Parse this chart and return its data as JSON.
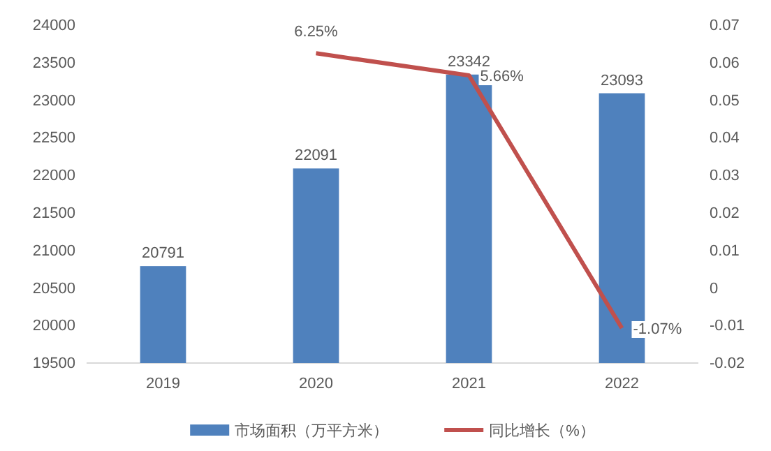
{
  "chart_data": {
    "type": "bar",
    "categories": [
      "2019",
      "2020",
      "2021",
      "2022"
    ],
    "series": [
      {
        "name": "市场面积（万平方米）",
        "color": "#4f81bd",
        "values": [
          20791,
          22091,
          23342,
          23093
        ]
      },
      {
        "name": "同比增长（%）",
        "type": "line",
        "axis": "y2",
        "color": "#c0504d",
        "values": [
          null,
          0.0625,
          0.0566,
          -0.0107
        ],
        "value_labels": [
          null,
          "6.25%",
          "5.66%",
          "-1.07%"
        ]
      }
    ],
    "data_labels": true,
    "ylim": [
      19500,
      24000
    ],
    "yticks": [
      19500,
      20000,
      20500,
      21000,
      21500,
      22000,
      22500,
      23000,
      23500,
      24000
    ],
    "y2lim": [
      -0.02,
      0.07
    ],
    "y2ticks": [
      -0.02,
      -0.01,
      0,
      0.01,
      0.02,
      0.03,
      0.04,
      0.05,
      0.06,
      0.07
    ],
    "legend": "bottom",
    "grid": false,
    "marker": "none",
    "line_style": "solid"
  }
}
